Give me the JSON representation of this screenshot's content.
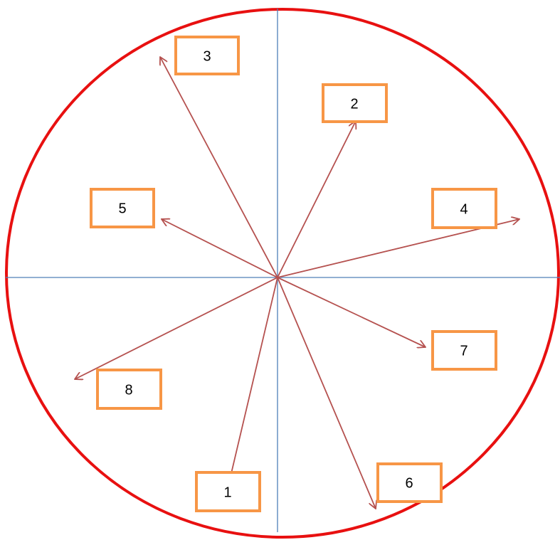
{
  "nodes": [
    {
      "label": "3"
    },
    {
      "label": "2"
    },
    {
      "label": "5"
    },
    {
      "label": "4"
    },
    {
      "label": "7"
    },
    {
      "label": "8"
    },
    {
      "label": "1"
    },
    {
      "label": "6"
    }
  ]
}
